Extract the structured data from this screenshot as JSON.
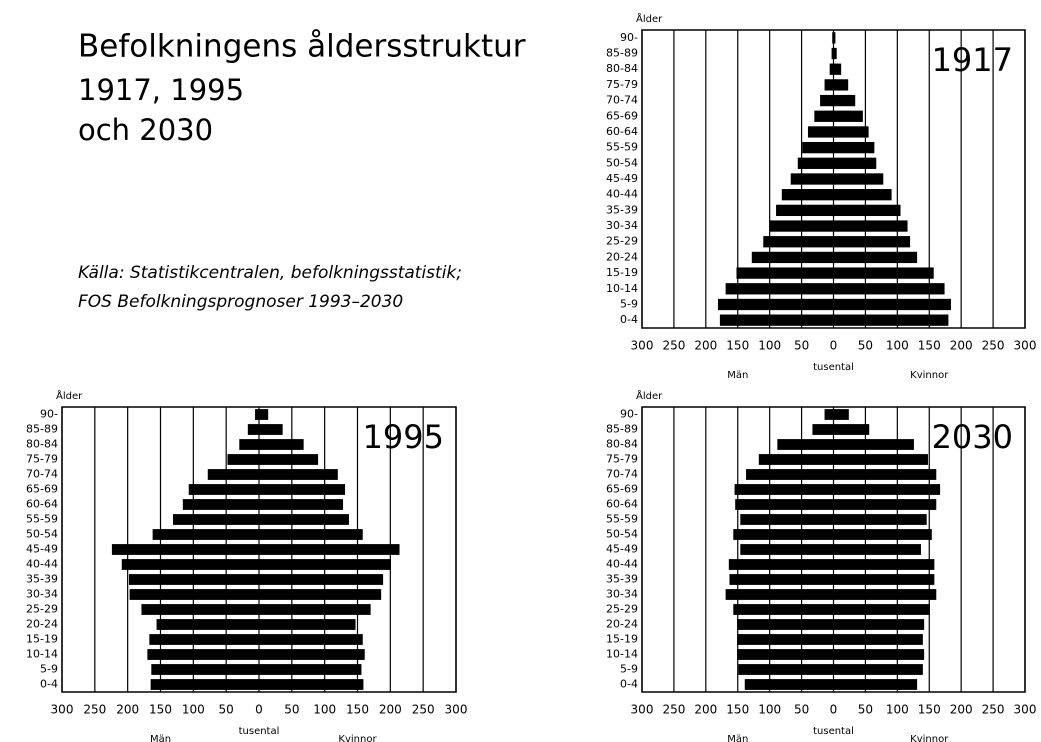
{
  "title": [
    "Befolkningens åldersstruktur",
    "1917, 1995",
    "och 2030"
  ],
  "source": [
    "Källa: Statistikcentralen, befolkningsstatistik;",
    "FOS Befolkningsprognoser 1993–2030"
  ],
  "chart_data": [
    {
      "type": "bar",
      "orientation": "horizontal",
      "annotation": "1917",
      "ylabel": "Ålder",
      "xlabel": "tusental",
      "categories": [
        "90-",
        "85-89",
        "80-84",
        "75-79",
        "70-74",
        "65-69",
        "60-64",
        "55-59",
        "50-54",
        "45-49",
        "40-44",
        "35-39",
        "30-34",
        "25-29",
        "20-24",
        "15-19",
        "10-14",
        "5-9",
        "0-4"
      ],
      "series": [
        {
          "name": "Män",
          "color": "#000000",
          "values": [
            -2,
            -3,
            -6,
            -14,
            -21,
            -30,
            -40,
            -49,
            -56,
            -67,
            -81,
            -90,
            -100,
            -110,
            -128,
            -152,
            -169,
            -181,
            -178
          ]
        },
        {
          "name": "Kvinnor",
          "color": "#000000",
          "values": [
            3,
            5,
            12,
            23,
            34,
            46,
            55,
            64,
            67,
            78,
            91,
            105,
            116,
            120,
            131,
            157,
            174,
            184,
            180
          ]
        }
      ],
      "xlim": [
        -300,
        300
      ],
      "xticks": [
        {
          "value": -300,
          "label": "300"
        },
        {
          "value": -250,
          "label": "250"
        },
        {
          "value": -200,
          "label": "200"
        },
        {
          "value": -150,
          "label": "150"
        },
        {
          "value": -100,
          "label": "100"
        },
        {
          "value": -50,
          "label": "50"
        },
        0,
        50,
        100,
        150,
        200,
        250,
        300
      ],
      "grid": true
    },
    {
      "type": "bar",
      "orientation": "horizontal",
      "annotation": "1995",
      "ylabel": "Ålder",
      "xlabel": "tusental",
      "categories": [
        "90-",
        "85-89",
        "80-84",
        "75-79",
        "70-74",
        "65-69",
        "60-64",
        "55-59",
        "50-54",
        "45-49",
        "40-44",
        "35-39",
        "30-34",
        "25-29",
        "20-24",
        "15-19",
        "10-14",
        "5-9",
        "0-4"
      ],
      "series": [
        {
          "name": "Män",
          "color": "#000000",
          "values": [
            -6,
            -17,
            -30,
            -48,
            -78,
            -107,
            -116,
            -131,
            -162,
            -224,
            -209,
            -198,
            -197,
            -179,
            -156,
            -167,
            -170,
            -164,
            -165
          ]
        },
        {
          "name": "Kvinnor",
          "color": "#000000",
          "values": [
            14,
            36,
            68,
            90,
            120,
            131,
            128,
            137,
            158,
            214,
            201,
            189,
            186,
            170,
            147,
            158,
            161,
            156,
            159
          ]
        }
      ],
      "xlim": [
        -300,
        300
      ],
      "xticks": [
        {
          "value": -300,
          "label": "300"
        },
        {
          "value": -250,
          "label": "250"
        },
        {
          "value": -200,
          "label": "200"
        },
        {
          "value": -150,
          "label": "150"
        },
        {
          "value": -100,
          "label": "100"
        },
        {
          "value": -50,
          "label": "50"
        },
        0,
        50,
        100,
        150,
        200,
        250,
        300
      ],
      "grid": true
    },
    {
      "type": "bar",
      "orientation": "horizontal",
      "annotation": "2030",
      "ylabel": "Ålder",
      "xlabel": "tusental",
      "categories": [
        "90-",
        "85-89",
        "80-84",
        "75-79",
        "70-74",
        "65-69",
        "60-64",
        "55-59",
        "50-54",
        "45-49",
        "40-44",
        "35-39",
        "30-34",
        "25-29",
        "20-24",
        "15-19",
        "10-14",
        "5-9",
        "0-4"
      ],
      "series": [
        {
          "name": "Män",
          "color": "#000000",
          "values": [
            -14,
            -33,
            -88,
            -117,
            -137,
            -155,
            -154,
            -146,
            -157,
            -146,
            -164,
            -163,
            -169,
            -157,
            -151,
            -151,
            -151,
            -149,
            -139
          ]
        },
        {
          "name": "Kvinnor",
          "color": "#000000",
          "values": [
            24,
            56,
            126,
            148,
            161,
            167,
            161,
            146,
            154,
            137,
            158,
            158,
            161,
            151,
            142,
            140,
            142,
            140,
            131
          ]
        }
      ],
      "xlim": [
        -300,
        300
      ],
      "xticks": [
        {
          "value": -300,
          "label": "300"
        },
        {
          "value": -250,
          "label": "250"
        },
        {
          "value": -200,
          "label": "200"
        },
        {
          "value": -150,
          "label": "150"
        },
        {
          "value": -100,
          "label": "100"
        },
        {
          "value": -50,
          "label": "50"
        },
        0,
        50,
        100,
        150,
        200,
        250,
        300
      ],
      "grid": true
    }
  ]
}
